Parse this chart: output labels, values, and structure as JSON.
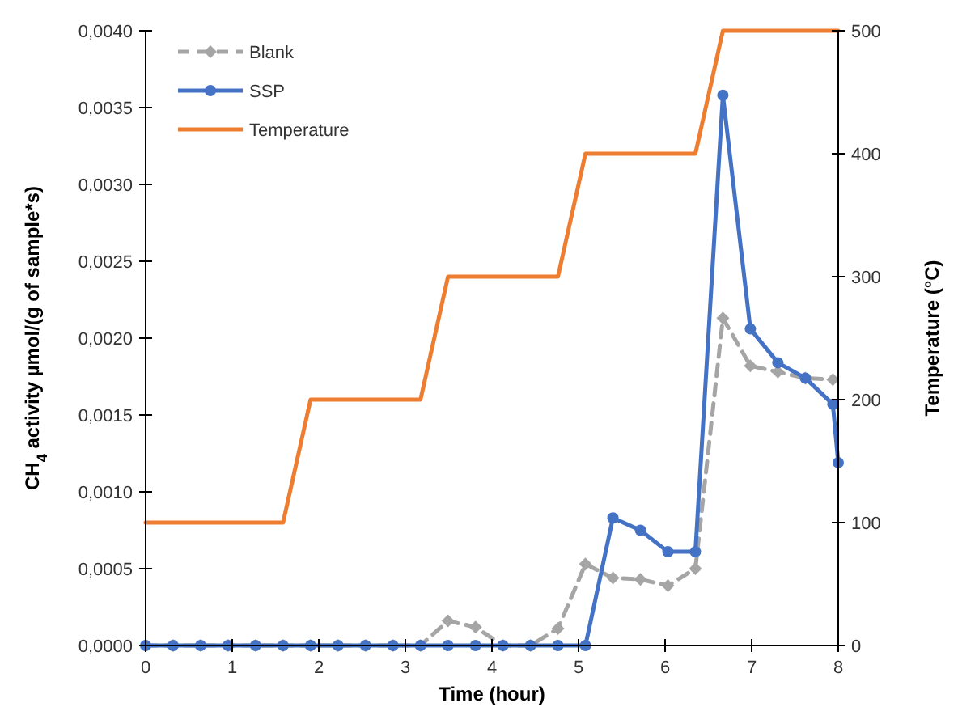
{
  "chart_data": {
    "type": "line",
    "xlabel": "Time (hour)",
    "ylabel": "CH$_{4}$ activity µmol/(g of sample*s)",
    "y2label": "Temperature (°C)",
    "xlim": [
      0,
      8
    ],
    "xticks": [
      0,
      1,
      2,
      3,
      4,
      5,
      6,
      7,
      8
    ],
    "ylim": [
      0,
      0.004
    ],
    "yticks": [
      {
        "value": 0,
        "label": "0,0000"
      },
      {
        "value": 0.0005,
        "label": "0,0005"
      },
      {
        "value": 0.001,
        "label": "0,0010"
      },
      {
        "value": 0.0015,
        "label": "0,0015"
      },
      {
        "value": 0.002,
        "label": "0,0020"
      },
      {
        "value": 0.0025,
        "label": "0,0025"
      },
      {
        "value": 0.003,
        "label": "0,0030"
      },
      {
        "value": 0.0035,
        "label": "0,0035"
      },
      {
        "value": 0.004,
        "label": "0,0040"
      }
    ],
    "y2lim": [
      0,
      500
    ],
    "y2ticks": [
      0,
      100,
      200,
      300,
      400,
      500
    ],
    "grid": false,
    "legend": "top left",
    "series": [
      {
        "name": "Blank",
        "color": "#a5a5a5",
        "marker": "diamond",
        "line_style": "dashed",
        "x": [
          0,
          0.3175,
          0.635,
          0.9525,
          1.27,
          1.5875,
          1.905,
          2.2225,
          2.54,
          2.8575,
          3.175,
          3.4925,
          3.81,
          4.1275,
          4.445,
          4.7625,
          5.08,
          5.3975,
          5.715,
          6.0325,
          6.35,
          6.6675,
          6.985,
          7.3025,
          7.62,
          7.9375
        ],
        "values": [
          0,
          0,
          0,
          0,
          0,
          0,
          0,
          0,
          0,
          0,
          0,
          0.00016,
          0.00012,
          0,
          0,
          0.00011,
          0.00053,
          0.00044,
          0.00043,
          0.00039,
          0.0005,
          0.00213,
          0.00182,
          0.00178,
          0.00174,
          0.00173
        ]
      },
      {
        "name": "SSP",
        "color": "#4472c4",
        "marker": "circle",
        "line_style": "solid",
        "x": [
          0,
          0.3175,
          0.635,
          0.9525,
          1.27,
          1.5875,
          1.905,
          2.2225,
          2.54,
          2.8575,
          3.175,
          3.4925,
          3.81,
          4.1275,
          4.445,
          4.7625,
          5.08,
          5.3975,
          5.715,
          6.0325,
          6.35,
          6.6675,
          6.985,
          7.3025,
          7.62,
          7.9375,
          8
        ],
        "values": [
          0,
          0,
          0,
          0,
          0,
          0,
          0,
          0,
          0,
          0,
          0,
          0,
          0,
          0,
          0,
          0,
          0,
          0.00083,
          0.00075,
          0.00061,
          0.00061,
          0.00358,
          0.00206,
          0.00184,
          0.00174,
          0.00157,
          0.00119
        ]
      },
      {
        "name": "Temperature",
        "color": "#ed7d31",
        "marker": "none",
        "line_style": "solid",
        "axis": "y2",
        "x": [
          0,
          1.5875,
          1.905,
          3.175,
          3.4925,
          4.7625,
          5.08,
          6.35,
          6.6675,
          8
        ],
        "values": [
          100,
          100,
          200,
          200,
          300,
          300,
          400,
          400,
          500,
          500
        ]
      }
    ]
  }
}
